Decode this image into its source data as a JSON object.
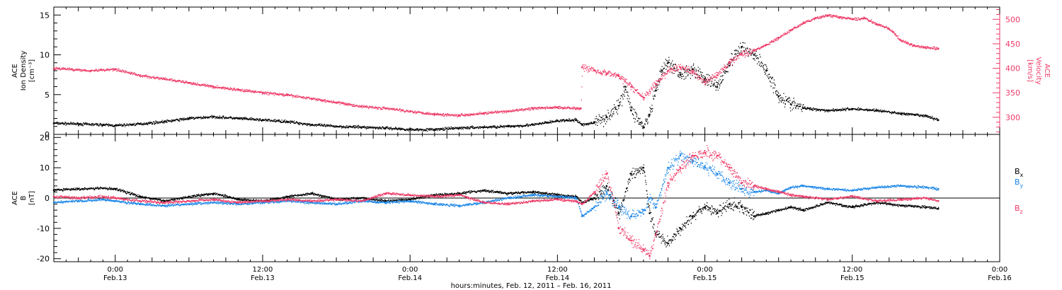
{
  "colors": {
    "bx": "#000000",
    "by": "#1a86e8",
    "bz": "#ee3a67",
    "velocity": "#ee3a67",
    "density": "#000000",
    "axis": "#000000"
  },
  "footer": {
    "time_label": "hours:minutes, Feb. 12, 2011 – Feb. 16, 2011"
  },
  "chart_data": [
    {
      "type": "scatter",
      "panel": "density-velocity",
      "x_unit": "hours since 2011-02-12 00:00",
      "xlim": [
        19,
        96
      ],
      "ylabel_left_lines": [
        "ACE",
        "Ion Density",
        "[cm⁻³]"
      ],
      "ylim_left": [
        0,
        16
      ],
      "yticks_left": [
        0,
        5,
        10,
        15
      ],
      "ylabel_right_lines": [
        "ACE",
        "Velocity",
        "[km/s]"
      ],
      "ylim_right": [
        265,
        525
      ],
      "yticks_right": [
        300,
        350,
        400,
        450,
        500
      ],
      "grid": false,
      "series": [
        {
          "axis": "left",
          "color": "#000000",
          "points": [
            [
              19,
              1.4
            ],
            [
              21,
              1.3
            ],
            [
              23,
              1.2
            ],
            [
              24,
              1.1
            ],
            [
              26,
              1.3
            ],
            [
              28,
              1.6
            ],
            [
              30,
              2.0
            ],
            [
              32,
              2.2
            ],
            [
              34,
              2.0
            ],
            [
              36,
              1.8
            ],
            [
              38,
              1.6
            ],
            [
              40,
              1.2
            ],
            [
              42,
              1.0
            ],
            [
              44,
              0.9
            ],
            [
              46,
              0.8
            ],
            [
              48,
              0.6
            ],
            [
              50,
              0.6
            ],
            [
              52,
              0.8
            ],
            [
              54,
              0.9
            ],
            [
              56,
              1.0
            ],
            [
              58,
              1.2
            ],
            [
              60,
              1.7
            ],
            [
              61.5,
              1.8
            ],
            [
              62,
              1.2
            ],
            [
              63,
              1.5
            ],
            [
              64,
              2.2
            ],
            [
              65,
              3.6
            ],
            [
              65.5,
              6.0
            ],
            [
              66,
              3.0
            ],
            [
              67,
              0.9
            ],
            [
              67.5,
              2.5
            ],
            [
              68,
              5.5
            ],
            [
              68.5,
              8.0
            ],
            [
              69,
              9.0
            ],
            [
              70,
              7.5
            ],
            [
              71,
              8.2
            ],
            [
              72,
              7.0
            ],
            [
              73,
              6.0
            ],
            [
              74,
              9.0
            ],
            [
              75,
              11.0
            ],
            [
              76,
              10.0
            ],
            [
              77,
              8.0
            ],
            [
              78,
              4.8
            ],
            [
              79,
              3.8
            ],
            [
              80,
              3.3
            ],
            [
              82,
              3.0
            ],
            [
              84,
              3.2
            ],
            [
              86,
              3.0
            ],
            [
              88,
              2.6
            ],
            [
              90,
              2.3
            ],
            [
              91,
              1.8
            ]
          ]
        },
        {
          "axis": "right",
          "color": "#ee3a67",
          "points": [
            [
              19,
              400
            ],
            [
              22,
              395
            ],
            [
              24,
              398
            ],
            [
              26,
              385
            ],
            [
              28,
              378
            ],
            [
              30,
              370
            ],
            [
              32,
              362
            ],
            [
              34,
              356
            ],
            [
              36,
              350
            ],
            [
              38,
              345
            ],
            [
              40,
              338
            ],
            [
              42,
              330
            ],
            [
              44,
              322
            ],
            [
              46,
              318
            ],
            [
              48,
              312
            ],
            [
              50,
              306
            ],
            [
              52,
              304
            ],
            [
              54,
              308
            ],
            [
              56,
              312
            ],
            [
              58,
              318
            ],
            [
              60,
              320
            ],
            [
              61.9,
              318
            ],
            [
              62,
              402
            ],
            [
              63,
              396
            ],
            [
              64,
              390
            ],
            [
              65,
              384
            ],
            [
              66,
              362
            ],
            [
              67,
              340
            ],
            [
              68,
              368
            ],
            [
              69,
              395
            ],
            [
              70,
              402
            ],
            [
              71,
              392
            ],
            [
              72,
              372
            ],
            [
              73,
              386
            ],
            [
              74,
              412
            ],
            [
              75,
              430
            ],
            [
              76,
              436
            ],
            [
              77,
              448
            ],
            [
              78,
              462
            ],
            [
              79,
              478
            ],
            [
              80,
              492
            ],
            [
              81,
              502
            ],
            [
              82,
              508
            ],
            [
              83,
              504
            ],
            [
              84,
              500
            ],
            [
              85,
              502
            ],
            [
              86,
              490
            ],
            [
              87,
              480
            ],
            [
              88,
              456
            ],
            [
              89,
              446
            ],
            [
              90,
              442
            ],
            [
              91,
              440
            ]
          ]
        }
      ]
    },
    {
      "type": "scatter",
      "panel": "magnetic-field",
      "x_unit": "hours since 2011-02-12 00:00",
      "xlim": [
        19,
        96
      ],
      "ylabel_lines": [
        "ACE",
        "B",
        "[nT]"
      ],
      "ylim": [
        -21,
        21
      ],
      "yticks": [
        -20,
        -10,
        0,
        10,
        20
      ],
      "zero_line": true,
      "xticks": [
        {
          "x": 24,
          "lines": [
            "0:00",
            "Feb.13"
          ]
        },
        {
          "x": 36,
          "lines": [
            "12:00",
            "Feb.13"
          ]
        },
        {
          "x": 48,
          "lines": [
            "0:00",
            "Feb.14"
          ]
        },
        {
          "x": 60,
          "lines": [
            "12:00",
            "Feb.14"
          ]
        },
        {
          "x": 72,
          "lines": [
            "0:00",
            "Feb.15"
          ]
        },
        {
          "x": 84,
          "lines": [
            "12:00",
            "Feb.15"
          ]
        },
        {
          "x": 96,
          "lines": [
            "0:00",
            "Feb.16"
          ]
        }
      ],
      "series": [
        {
          "name": "Bx",
          "color": "#000000",
          "points": [
            [
              19,
              2.6
            ],
            [
              21,
              3.0
            ],
            [
              23,
              3.2
            ],
            [
              24,
              3.0
            ],
            [
              26,
              0.5
            ],
            [
              28,
              -1.0
            ],
            [
              30,
              0.5
            ],
            [
              32,
              1.5
            ],
            [
              34,
              -0.5
            ],
            [
              36,
              -1.0
            ],
            [
              38,
              0.5
            ],
            [
              40,
              1.5
            ],
            [
              42,
              -0.5
            ],
            [
              44,
              0.0
            ],
            [
              46,
              -1.0
            ],
            [
              48,
              -0.5
            ],
            [
              50,
              1.0
            ],
            [
              52,
              1.5
            ],
            [
              54,
              2.5
            ],
            [
              56,
              1.5
            ],
            [
              58,
              2.0
            ],
            [
              60,
              1.0
            ],
            [
              61.5,
              0.5
            ],
            [
              62,
              -1.5
            ],
            [
              63,
              0.0
            ],
            [
              64,
              4.0
            ],
            [
              65,
              -5.0
            ],
            [
              66,
              8.0
            ],
            [
              67,
              10.0
            ],
            [
              67.5,
              -5.0
            ],
            [
              68,
              -12.0
            ],
            [
              69,
              -15.0
            ],
            [
              70,
              -10.0
            ],
            [
              71,
              -6.0
            ],
            [
              72,
              -3.0
            ],
            [
              73,
              -5.0
            ],
            [
              74,
              -2.0
            ],
            [
              75,
              -3.0
            ],
            [
              76,
              -6.0
            ],
            [
              77,
              -5.0
            ],
            [
              78,
              -4.0
            ],
            [
              79,
              -3.0
            ],
            [
              80,
              -4.0
            ],
            [
              82,
              -1.5
            ],
            [
              84,
              -3.0
            ],
            [
              86,
              -1.5
            ],
            [
              88,
              -2.5
            ],
            [
              90,
              -3.0
            ],
            [
              91,
              -3.5
            ]
          ]
        },
        {
          "name": "By",
          "color": "#1a86e8",
          "points": [
            [
              19,
              -1.5
            ],
            [
              21,
              -1.0
            ],
            [
              23,
              -0.5
            ],
            [
              24,
              -1.0
            ],
            [
              26,
              -2.0
            ],
            [
              28,
              -2.5
            ],
            [
              30,
              -2.0
            ],
            [
              32,
              -1.5
            ],
            [
              34,
              -2.0
            ],
            [
              36,
              -1.5
            ],
            [
              38,
              -1.0
            ],
            [
              40,
              -1.5
            ],
            [
              42,
              -2.0
            ],
            [
              44,
              -1.0
            ],
            [
              46,
              -1.5
            ],
            [
              48,
              -1.0
            ],
            [
              50,
              -2.0
            ],
            [
              52,
              -2.5
            ],
            [
              54,
              -1.5
            ],
            [
              56,
              0.0
            ],
            [
              58,
              1.0
            ],
            [
              60,
              0.5
            ],
            [
              61.5,
              0.0
            ],
            [
              62,
              -6.0
            ],
            [
              63,
              -3.0
            ],
            [
              64,
              2.0
            ],
            [
              65,
              -3.0
            ],
            [
              66,
              -6.0
            ],
            [
              67,
              -4.0
            ],
            [
              67.5,
              0.0
            ],
            [
              68,
              -3.0
            ],
            [
              69,
              10.0
            ],
            [
              70,
              14.0
            ],
            [
              71,
              12.0
            ],
            [
              72,
              10.0
            ],
            [
              73,
              8.0
            ],
            [
              74,
              5.0
            ],
            [
              75,
              3.0
            ],
            [
              76,
              2.0
            ],
            [
              77,
              2.5
            ],
            [
              78,
              1.5
            ],
            [
              79,
              3.5
            ],
            [
              80,
              4.0
            ],
            [
              82,
              3.0
            ],
            [
              84,
              2.5
            ],
            [
              86,
              3.5
            ],
            [
              88,
              4.0
            ],
            [
              90,
              3.5
            ],
            [
              91,
              3.0
            ]
          ]
        },
        {
          "name": "Bz",
          "color": "#ee3a67",
          "points": [
            [
              19,
              0.5
            ],
            [
              21,
              0.0
            ],
            [
              23,
              0.5
            ],
            [
              24,
              0.0
            ],
            [
              26,
              -1.0
            ],
            [
              28,
              -1.5
            ],
            [
              30,
              -1.0
            ],
            [
              32,
              -0.5
            ],
            [
              34,
              -1.5
            ],
            [
              36,
              -1.0
            ],
            [
              38,
              -0.5
            ],
            [
              40,
              -1.0
            ],
            [
              42,
              -0.5
            ],
            [
              44,
              -1.0
            ],
            [
              46,
              1.5
            ],
            [
              48,
              1.0
            ],
            [
              50,
              0.5
            ],
            [
              52,
              1.0
            ],
            [
              54,
              -1.5
            ],
            [
              56,
              -2.0
            ],
            [
              58,
              -1.0
            ],
            [
              60,
              -0.5
            ],
            [
              61.5,
              -1.0
            ],
            [
              62,
              -2.0
            ],
            [
              63,
              2.0
            ],
            [
              64,
              8.0
            ],
            [
              65,
              -10.0
            ],
            [
              66,
              -14.0
            ],
            [
              67,
              -17.0
            ],
            [
              67.5,
              -19.0
            ],
            [
              68,
              -12.0
            ],
            [
              69,
              5.0
            ],
            [
              70,
              10.0
            ],
            [
              71,
              14.0
            ],
            [
              72,
              15.0
            ],
            [
              73,
              14.0
            ],
            [
              74,
              10.0
            ],
            [
              75,
              5.0
            ],
            [
              76,
              4.0
            ],
            [
              77,
              3.0
            ],
            [
              78,
              2.0
            ],
            [
              79,
              1.0
            ],
            [
              80,
              0.5
            ],
            [
              82,
              -0.5
            ],
            [
              84,
              0.5
            ],
            [
              86,
              -1.0
            ],
            [
              88,
              -0.5
            ],
            [
              90,
              0.0
            ],
            [
              91,
              -1.0
            ]
          ]
        }
      ],
      "legend": [
        {
          "label": "B",
          "sub": "x",
          "color": "#000000"
        },
        {
          "label": "B",
          "sub": "y",
          "color": "#1a86e8"
        },
        {
          "label": "B",
          "sub": "z",
          "color": "#ee3a67"
        }
      ]
    }
  ]
}
